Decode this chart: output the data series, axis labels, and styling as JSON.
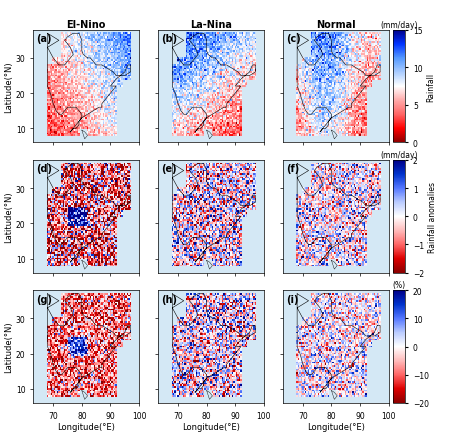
{
  "title_col1": "El-Nino",
  "title_col2": "La-Nina",
  "title_col3": "Normal",
  "row_labels": [
    "(a)",
    "(b)",
    "(c)",
    "(d)",
    "(e)",
    "(f)",
    "(g)",
    "(h)",
    "(i)"
  ],
  "lon_range": [
    63,
    100
  ],
  "lat_range": [
    6,
    38
  ],
  "lon_ticks": [
    70,
    80,
    90,
    100
  ],
  "lat_ticks": [
    10,
    20,
    30
  ],
  "xlabel": "Longitude(°E)",
  "ylabel": "Latitude(°N)",
  "cbar1_label": "Rainfall",
  "cbar1_unit": "(mm/day)",
  "cbar1_vmin": 0,
  "cbar1_vmax": 15,
  "cbar1_ticks": [
    0,
    5,
    10,
    15
  ],
  "cbar2_label": "Rainfall anomalies",
  "cbar2_unit": "(mm/day)",
  "cbar2_vmin": -2,
  "cbar2_vmax": 2,
  "cbar2_ticks": [
    -2,
    -1,
    0,
    1,
    2
  ],
  "cbar3_label": "(%)",
  "cbar3_vmin": -20,
  "cbar3_vmax": 20,
  "cbar3_ticks": [
    -20,
    -10,
    0,
    10,
    20
  ],
  "background_color": "#ffffff",
  "map_background": "#d0e8f0",
  "land_color": "#cccccc",
  "figsize": [
    4.74,
    4.39
  ],
  "dpi": 100,
  "seed": 42
}
